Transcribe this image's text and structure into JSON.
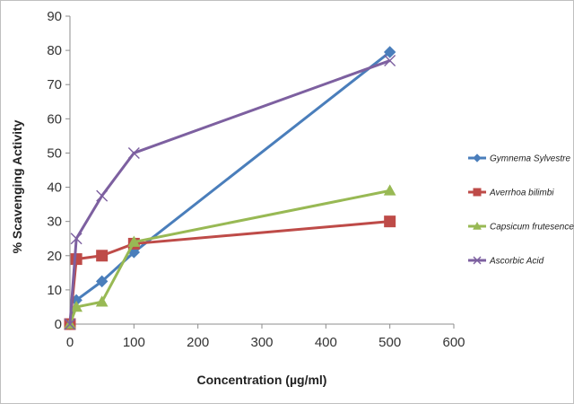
{
  "chart_data": {
    "type": "line",
    "title": "",
    "xlabel": "Concentration (µg/ml)",
    "ylabel": "% Scavenging Activity",
    "xlim": [
      0,
      600
    ],
    "ylim": [
      0,
      90
    ],
    "xticks": [
      0,
      100,
      200,
      300,
      400,
      500,
      600
    ],
    "yticks": [
      0,
      10,
      20,
      30,
      40,
      50,
      60,
      70,
      80,
      90
    ],
    "grid": false,
    "legend": "right",
    "series": [
      {
        "name": "Gymnema Sylvestre",
        "color": "#4a7ebb",
        "marker": "diamond",
        "x": [
          0,
          10,
          50,
          100,
          500
        ],
        "y": [
          0,
          7,
          12.5,
          21,
          79.5
        ]
      },
      {
        "name": "Averrhoa bilimbi",
        "color": "#be4b48",
        "marker": "square",
        "x": [
          0,
          10,
          50,
          100,
          500
        ],
        "y": [
          0,
          19,
          20,
          23.5,
          30
        ]
      },
      {
        "name": "Capsicum frutesence",
        "color": "#98b954",
        "marker": "triangle",
        "x": [
          0,
          10,
          50,
          100,
          500
        ],
        "y": [
          0,
          5,
          6.5,
          24,
          39
        ]
      },
      {
        "name": "Ascorbic Acid",
        "color": "#7d60a0",
        "marker": "x",
        "x": [
          0,
          10,
          50,
          100,
          500
        ],
        "y": [
          0,
          25,
          37.5,
          50,
          77
        ]
      }
    ]
  }
}
